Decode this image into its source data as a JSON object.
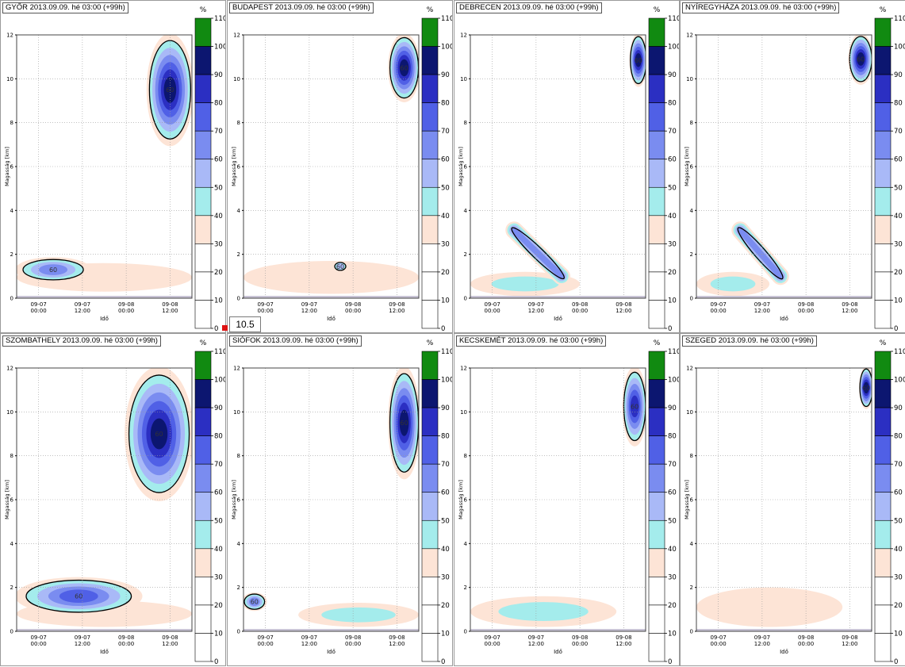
{
  "common": {
    "y_axis_label": "Magasság [km]",
    "x_axis_label": "Idő",
    "pct_symbol": "%",
    "y_ticks": [
      "0",
      "2",
      "4",
      "6",
      "8",
      "10",
      "12"
    ],
    "x_ticks": [
      {
        "top": "09-07",
        "bottom": "00:00"
      },
      {
        "top": "09-07",
        "bottom": "12:00"
      },
      {
        "top": "09-08",
        "bottom": "00:00"
      },
      {
        "top": "09-08",
        "bottom": "12:00"
      }
    ],
    "legend": {
      "ticks": [
        "110",
        "100",
        "90",
        "80",
        "70",
        "60",
        "50",
        "40",
        "30",
        "20",
        "10",
        "0"
      ],
      "colors": [
        "#118a11",
        "#0c1670",
        "#2b2fc2",
        "#5060e6",
        "#7a8cf0",
        "#a9b9f7",
        "#a4ecec",
        "#fde4d6",
        "#ffffff",
        "#ffffff",
        "#ffffff"
      ]
    },
    "contour_label": "60"
  },
  "readout": {
    "value": "10.5"
  },
  "chart_data": [
    {
      "type": "heatmap",
      "title": "GYŐR 2013.09.09. hé 03:00 (+99h)",
      "ylabel": "Magasság [km]",
      "xlabel": "Idő",
      "ylim": [
        0,
        12
      ],
      "zlim": [
        0,
        110
      ],
      "x": [
        "09-07 00:00",
        "09-07 12:00",
        "09-08 00:00",
        "09-08 12:00"
      ],
      "features": [
        {
          "kind": "upper",
          "x0": 36,
          "x1": 48,
          "y0": 7.0,
          "y1": 12.0,
          "peak": 100
        },
        {
          "kind": "lower",
          "x0": 0,
          "x1": 20,
          "y0": 0.8,
          "y1": 1.8,
          "peak": 75
        },
        {
          "kind": "haze",
          "x0": 0,
          "x1": 48,
          "y0": 0.3,
          "y1": 1.6,
          "peak": 45
        }
      ]
    },
    {
      "type": "heatmap",
      "title": "BUDAPEST 2013.09.09. hé 03:00 (+99h)",
      "ylabel": "Magasság [km]",
      "xlabel": "Idő",
      "ylim": [
        0,
        12
      ],
      "zlim": [
        0,
        110
      ],
      "x": [
        "09-07 00:00",
        "09-07 12:00",
        "09-08 00:00",
        "09-08 12:00"
      ],
      "features": [
        {
          "kind": "upper",
          "x0": 40,
          "x1": 48,
          "y0": 9.0,
          "y1": 12.0,
          "peak": 100
        },
        {
          "kind": "haze",
          "x0": 0,
          "x1": 48,
          "y0": 0.2,
          "y1": 1.7,
          "peak": 45
        },
        {
          "kind": "spot",
          "x0": 25,
          "x1": 28,
          "y0": 1.3,
          "y1": 1.6,
          "peak": 62
        }
      ]
    },
    {
      "type": "heatmap",
      "title": "DEBRECEN 2013.09.09. hé 03:00 (+99h)",
      "ylabel": "Magasság [km]",
      "xlabel": "Idő",
      "ylim": [
        0,
        12
      ],
      "zlim": [
        0,
        110
      ],
      "x": [
        "09-07 00:00",
        "09-07 12:00",
        "09-08 00:00",
        "09-08 12:00"
      ],
      "features": [
        {
          "kind": "upper",
          "x0": 44,
          "x1": 48,
          "y0": 9.7,
          "y1": 12.0,
          "peak": 100
        },
        {
          "kind": "diag",
          "x0": 12,
          "x1": 25,
          "y0": 1.0,
          "y1": 3.1,
          "peak": 70
        },
        {
          "kind": "haze",
          "x0": 0,
          "x1": 30,
          "y0": 0.1,
          "y1": 1.2,
          "peak": 50
        }
      ]
    },
    {
      "type": "heatmap",
      "title": "NYÍREGYHÁZA 2013.09.09. hé 03:00 (+99h)",
      "ylabel": "Magasság [km]",
      "xlabel": "Idő",
      "ylim": [
        0,
        12
      ],
      "zlim": [
        0,
        110
      ],
      "x": [
        "09-07 00:00",
        "09-07 12:00",
        "09-08 00:00",
        "09-08 12:00"
      ],
      "features": [
        {
          "kind": "upper",
          "x0": 42,
          "x1": 48,
          "y0": 9.8,
          "y1": 12.0,
          "peak": 100
        },
        {
          "kind": "diag",
          "x0": 12,
          "x1": 23,
          "y0": 1.0,
          "y1": 3.1,
          "peak": 70
        },
        {
          "kind": "haze",
          "x0": 0,
          "x1": 20,
          "y0": 0.1,
          "y1": 1.2,
          "peak": 50
        }
      ]
    },
    {
      "type": "heatmap",
      "title": "SZOMBATHELY 2013.09.09. hé 03:00 (+99h)",
      "ylabel": "Magasság [km]",
      "xlabel": "Idő",
      "ylim": [
        0,
        12
      ],
      "zlim": [
        0,
        110
      ],
      "x": [
        "09-07 00:00",
        "09-07 12:00",
        "09-08 00:00",
        "09-08 12:00"
      ],
      "features": [
        {
          "kind": "upper",
          "x0": 30,
          "x1": 48,
          "y0": 6.0,
          "y1": 12.0,
          "peak": 100
        },
        {
          "kind": "lower",
          "x0": 0,
          "x1": 34,
          "y0": 0.8,
          "y1": 2.4,
          "peak": 80
        },
        {
          "kind": "haze",
          "x0": 0,
          "x1": 48,
          "y0": 0.2,
          "y1": 1.4,
          "peak": 45
        }
      ]
    },
    {
      "type": "heatmap",
      "title": "SIÓFOK 2013.09.09. hé 03:00 (+99h)",
      "ylabel": "Magasság [km]",
      "xlabel": "Idő",
      "ylim": [
        0,
        12
      ],
      "zlim": [
        0,
        110
      ],
      "x": [
        "09-07 00:00",
        "09-07 12:00",
        "09-08 00:00",
        "09-08 12:00"
      ],
      "features": [
        {
          "kind": "upper",
          "x0": 40,
          "x1": 48,
          "y0": 7.0,
          "y1": 12.0,
          "peak": 100
        },
        {
          "kind": "lower",
          "x0": 0,
          "x1": 6,
          "y0": 1.0,
          "y1": 1.7,
          "peak": 70
        },
        {
          "kind": "haze",
          "x0": 15,
          "x1": 48,
          "y0": 0.2,
          "y1": 1.3,
          "peak": 50
        }
      ]
    },
    {
      "type": "heatmap",
      "title": "KECSKEMÉT 2013.09.09. hé 03:00 (+99h)",
      "ylabel": "Magasság [km]",
      "xlabel": "Idő",
      "ylim": [
        0,
        12
      ],
      "zlim": [
        0,
        110
      ],
      "x": [
        "09-07 00:00",
        "09-07 12:00",
        "09-08 00:00",
        "09-08 12:00"
      ],
      "features": [
        {
          "kind": "upper",
          "x0": 42,
          "x1": 48,
          "y0": 8.5,
          "y1": 12.0,
          "peak": 95
        },
        {
          "kind": "haze",
          "x0": 0,
          "x1": 40,
          "y0": 0.2,
          "y1": 1.6,
          "peak": 50
        }
      ]
    },
    {
      "type": "heatmap",
      "title": "SZEGED 2013.09.09. hé 03:00 (+99h)",
      "ylabel": "Magasság [km]",
      "xlabel": "Idő",
      "ylim": [
        0,
        12
      ],
      "zlim": [
        0,
        110
      ],
      "x": [
        "09-07 00:00",
        "09-07 12:00",
        "09-08 00:00",
        "09-08 12:00"
      ],
      "features": [
        {
          "kind": "upper",
          "x0": 45,
          "x1": 48,
          "y0": 10.2,
          "y1": 12.0,
          "peak": 100
        },
        {
          "kind": "haze",
          "x0": 0,
          "x1": 40,
          "y0": 0.2,
          "y1": 2.0,
          "peak": 45
        }
      ]
    }
  ]
}
